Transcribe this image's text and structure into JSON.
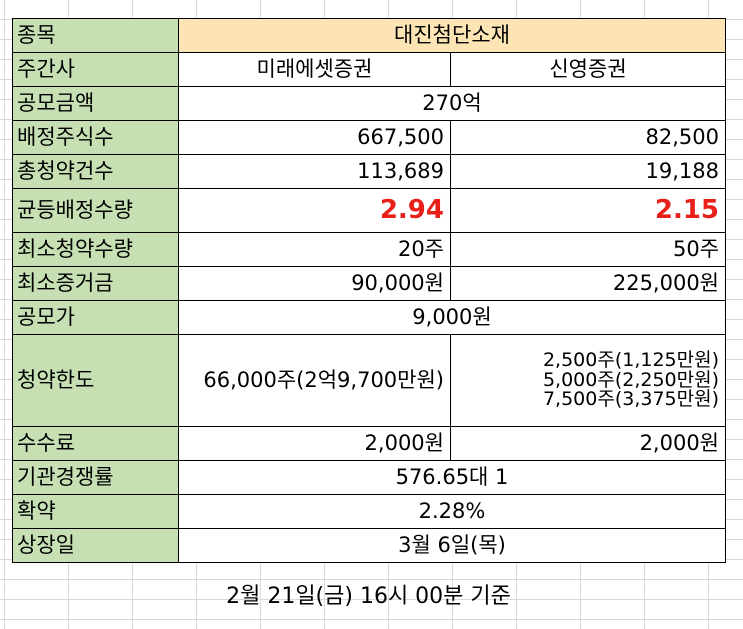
{
  "rows": {
    "stock": {
      "label": "종목",
      "value": "대진첨단소재"
    },
    "underwriter": {
      "label": "주간사",
      "a": "미래에셋증권",
      "b": "신영증권"
    },
    "amount": {
      "label": "공모금액",
      "value": "270억"
    },
    "allot": {
      "label": "배정주식수",
      "a": "667,500",
      "b": "82,500"
    },
    "count": {
      "label": "총청약건수",
      "a": "113,689",
      "b": "19,188"
    },
    "equal": {
      "label": "균등배정수량",
      "a": "2.94",
      "b": "2.15"
    },
    "minshares": {
      "label": "최소청약수량",
      "a": "20주",
      "b": "50주"
    },
    "deposit": {
      "label": "최소증거금",
      "a": "90,000원",
      "b": "225,000원"
    },
    "price": {
      "label": "공모가",
      "value": "9,000원"
    },
    "limit": {
      "label": "청약한도",
      "a": "66,000주(2억9,700만원)",
      "b": [
        "2,500주(1,125만원)",
        "5,000주(2,250만원)",
        "7,500주(3,375만원)"
      ]
    },
    "fee": {
      "label": "수수료",
      "a": "2,000원",
      "b": "2,000원"
    },
    "compete": {
      "label": "기관경쟁률",
      "value": "576.65대 1"
    },
    "commit": {
      "label": "확약",
      "value": "2.28%"
    },
    "listing": {
      "label": "상장일",
      "value": "3월 6일(목)"
    }
  },
  "footer": "2월 21일(금) 16시 00분 기준",
  "colors": {
    "label_bg": "#c6e0b4",
    "header_bg": "#fce4b4",
    "highlight": "#e8201a"
  }
}
